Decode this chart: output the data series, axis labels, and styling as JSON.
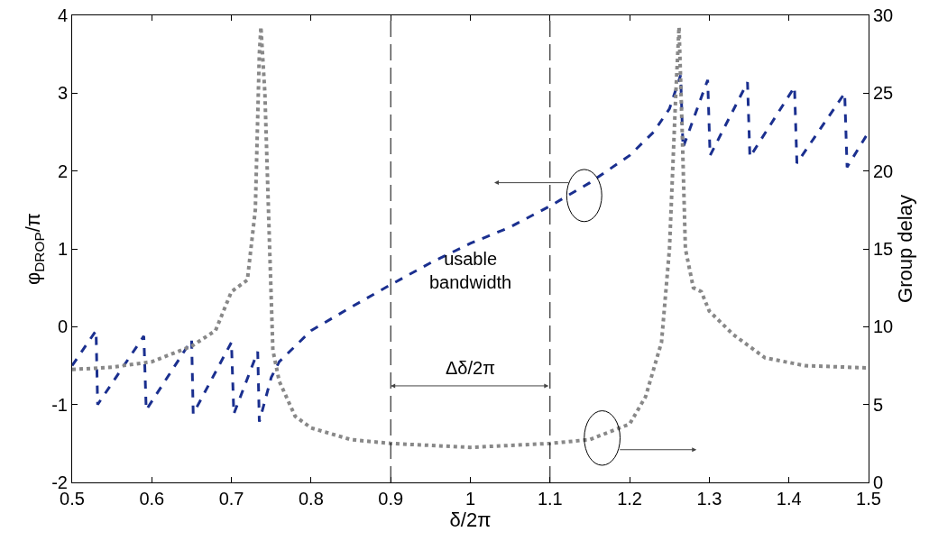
{
  "chart_data": {
    "type": "line",
    "xlabel": "δ/2π",
    "ylabel": "φ$_{DROP}$/π",
    "y2label": "Group delay",
    "xlim": [
      0.5,
      1.5
    ],
    "xticks": [
      0.5,
      0.6,
      0.7,
      0.8,
      0.9,
      1,
      1.1,
      1.2,
      1.3,
      1.4,
      1.5
    ],
    "ylim": [
      -2,
      4
    ],
    "yticks": [
      -2,
      -1,
      0,
      1,
      2,
      3,
      4
    ],
    "y2lim": [
      0,
      30
    ],
    "y2ticks": [
      0,
      5,
      10,
      15,
      20,
      25,
      30
    ],
    "grid": false,
    "series": [
      {
        "color": "#1a2f8f",
        "line_style": "dashed",
        "x": [
          0.5,
          0.53,
          0.532,
          0.59,
          0.593,
          0.65,
          0.652,
          0.7,
          0.703,
          0.733,
          0.735,
          0.75,
          0.76,
          0.78,
          0.8,
          0.85,
          0.9,
          0.95,
          1.0,
          1.05,
          1.1,
          1.15,
          1.2,
          1.23,
          1.25,
          1.264,
          1.267,
          1.298,
          1.301,
          1.348,
          1.351,
          1.407,
          1.41,
          1.47,
          1.473,
          1.5
        ],
        "values": [
          -0.5,
          -0.05,
          -1.0,
          -0.12,
          -1.07,
          -0.17,
          -1.12,
          -0.2,
          -1.12,
          -0.32,
          -1.22,
          -0.65,
          -0.45,
          -0.25,
          -0.05,
          0.25,
          0.54,
          0.82,
          1.07,
          1.28,
          1.55,
          1.85,
          2.2,
          2.5,
          2.8,
          3.23,
          2.3,
          3.17,
          2.2,
          3.14,
          2.18,
          3.08,
          2.1,
          3.0,
          2.05,
          2.5
        ]
      },
      {
        "color": "#888888",
        "line_style": "dotted",
        "axis": "y2",
        "x": [
          0.5,
          0.55,
          0.6,
          0.65,
          0.68,
          0.7,
          0.72,
          0.73,
          0.735,
          0.737,
          0.742,
          0.748,
          0.752,
          0.76,
          0.78,
          0.8,
          0.85,
          0.9,
          1.0,
          1.1,
          1.15,
          1.2,
          1.22,
          1.24,
          1.25,
          1.258,
          1.262,
          1.266,
          1.27,
          1.28,
          1.29,
          1.3,
          1.33,
          1.37,
          1.42,
          1.5
        ],
        "values": [
          7.25,
          7.4,
          7.75,
          8.75,
          9.75,
          12.25,
          13,
          17.5,
          27.5,
          29.25,
          25,
          15,
          8.5,
          6.5,
          4.25,
          3.5,
          2.75,
          2.5,
          2.25,
          2.5,
          2.75,
          3.75,
          5.5,
          9,
          15,
          25,
          29.25,
          22.5,
          15,
          12.5,
          12.25,
          11,
          9.5,
          8,
          7.5,
          7.35
        ]
      }
    ],
    "ref_lines": [
      {
        "axis": "x",
        "value": 0.9,
        "color": "#000000",
        "line_style": "dashed"
      },
      {
        "axis": "x",
        "value": 1.1,
        "color": "#000000",
        "line_style": "dashed"
      }
    ],
    "annotations": [
      "usable bandwidth",
      "Δδ/2π"
    ]
  }
}
